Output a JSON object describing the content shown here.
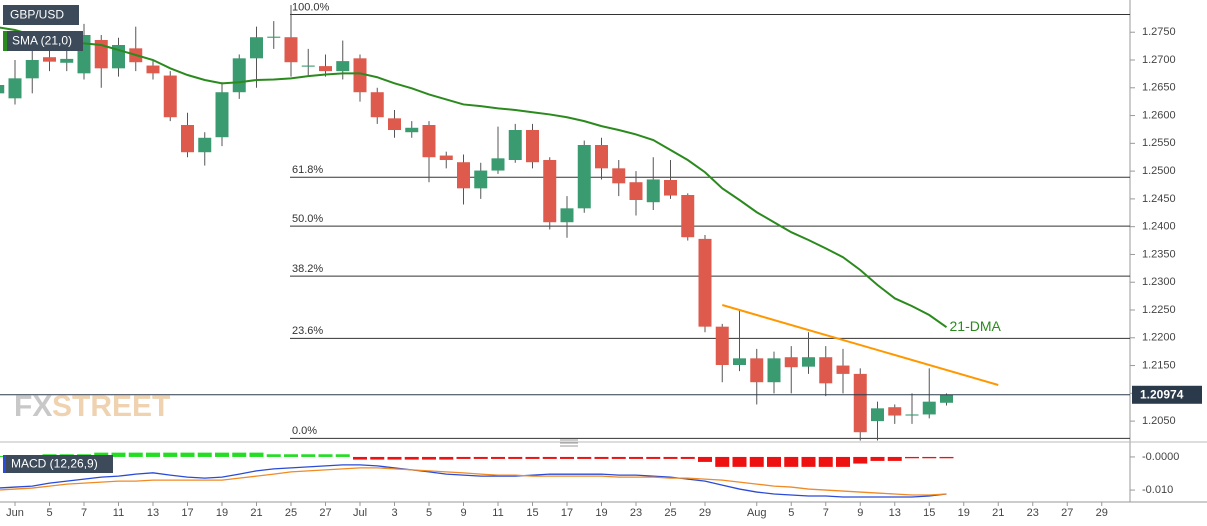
{
  "chart_data": [
    {
      "type": "candlestick",
      "title": "GBP/USD",
      "indicator_label": "SMA (21,0)",
      "categories": [
        null,
        "Jun",
        null,
        "5",
        null,
        "7",
        null,
        "11",
        null,
        "13",
        null,
        "17",
        null,
        "19",
        null,
        "21",
        null,
        "25",
        null,
        "27",
        null,
        "Jul",
        null,
        "3",
        null,
        "5",
        null,
        "9",
        null,
        "11",
        null,
        "15",
        null,
        "17",
        null,
        "19",
        null,
        "23",
        null,
        "25",
        null,
        "29",
        null,
        null,
        "Aug",
        null,
        "5",
        null,
        "7",
        null,
        "9",
        null,
        "13",
        null,
        "15",
        null,
        "19",
        null,
        "21",
        null,
        "23",
        null,
        "27",
        null,
        "29",
        null
      ],
      "open": [
        1.264,
        1.2631,
        1.2667,
        1.2705,
        1.2695,
        1.2676,
        1.2736,
        1.2685,
        1.2721,
        1.269,
        1.2672,
        1.2583,
        1.2534,
        1.2561,
        1.2642,
        1.2703,
        1.274,
        1.2741,
        1.2688,
        1.2689,
        1.268,
        1.2703,
        1.2642,
        1.2595,
        1.257,
        1.2583,
        1.2528,
        1.2516,
        1.2469,
        1.2501,
        1.252,
        1.2574,
        1.252,
        1.2408,
        1.2433,
        1.2547,
        1.2505,
        1.248,
        1.2444,
        1.2484,
        1.2457,
        1.2378,
        1.222,
        1.2151,
        1.2163,
        1.212,
        1.2165,
        1.2148,
        1.2165,
        1.215,
        1.2135,
        1.205,
        1.2075,
        1.206,
        1.2062,
        1.2083,
        null,
        null,
        null,
        null,
        null,
        null,
        null,
        null,
        null,
        null
      ],
      "high": [
        1.268,
        1.27,
        1.272,
        1.2725,
        1.272,
        1.2765,
        1.2745,
        1.274,
        1.276,
        1.27,
        1.268,
        1.2605,
        1.257,
        1.266,
        1.271,
        1.276,
        1.277,
        1.2799,
        1.272,
        1.271,
        1.2735,
        1.271,
        1.265,
        1.261,
        1.259,
        1.259,
        1.2535,
        1.253,
        1.2515,
        1.258,
        1.2585,
        1.2585,
        1.2525,
        1.2455,
        1.2555,
        1.256,
        1.252,
        1.25,
        1.2525,
        1.252,
        1.246,
        1.2385,
        1.2225,
        1.225,
        1.218,
        1.2175,
        1.2185,
        1.221,
        1.2185,
        1.218,
        1.2145,
        1.2085,
        1.208,
        1.21,
        1.2145,
        1.21,
        null,
        null,
        null,
        null,
        null,
        null,
        null,
        null,
        null,
        null
      ],
      "low": [
        1.261,
        1.262,
        1.264,
        1.268,
        1.268,
        1.2665,
        1.265,
        1.267,
        1.268,
        1.2665,
        1.259,
        1.2525,
        1.251,
        1.2545,
        1.263,
        1.265,
        1.272,
        1.267,
        1.267,
        1.267,
        1.2665,
        1.2625,
        1.2585,
        1.256,
        1.256,
        1.248,
        1.2505,
        1.244,
        1.245,
        1.2495,
        1.2515,
        1.2505,
        1.2395,
        1.238,
        1.2425,
        1.2485,
        1.2455,
        1.242,
        1.243,
        1.245,
        1.2375,
        1.221,
        1.212,
        1.214,
        1.208,
        1.21,
        1.21,
        1.2135,
        1.2095,
        1.21,
        1.2015,
        1.2015,
        1.2045,
        1.2045,
        1.2055,
        1.2078,
        null,
        null,
        null,
        null,
        null,
        null,
        null,
        null,
        null,
        null
      ],
      "close": [
        1.2655,
        1.2667,
        1.27,
        1.2697,
        1.2702,
        1.2745,
        1.2685,
        1.2727,
        1.2696,
        1.2676,
        1.2597,
        1.2534,
        1.256,
        1.2642,
        1.2703,
        1.2741,
        1.2742,
        1.2696,
        1.269,
        1.268,
        1.2698,
        1.2642,
        1.2597,
        1.2574,
        1.2578,
        1.2525,
        1.252,
        1.2469,
        1.2501,
        1.2523,
        1.2574,
        1.2516,
        1.2408,
        1.2433,
        1.2547,
        1.2505,
        1.2478,
        1.2448,
        1.2485,
        1.2456,
        1.2381,
        1.222,
        1.2151,
        1.2163,
        1.212,
        1.2163,
        1.2147,
        1.2165,
        1.2118,
        1.2135,
        1.203,
        1.2073,
        1.206,
        1.2062,
        1.2085,
        1.2097,
        null,
        null,
        null,
        null,
        null,
        null,
        null,
        null,
        null,
        null
      ],
      "up_color": "#3a9b70",
      "down_color": "#dd5a4c",
      "sma": {
        "name": "21-DMA",
        "color": "#2b8a1e",
        "values": [
          1.2759,
          1.2754,
          1.2745,
          1.2736,
          1.2732,
          1.273,
          1.2727,
          1.2718,
          1.2709,
          1.27,
          1.2685,
          1.2673,
          1.2664,
          1.2658,
          1.266,
          1.2664,
          1.2665,
          1.2667,
          1.2671,
          1.2674,
          1.2676,
          1.2676,
          1.2669,
          1.2658,
          1.2649,
          1.2638,
          1.2629,
          1.262,
          1.2617,
          1.2613,
          1.261,
          1.2606,
          1.2602,
          1.2597,
          1.259,
          1.2581,
          1.2574,
          1.2566,
          1.2556,
          1.2538,
          1.252,
          1.2498,
          1.2469,
          1.2448,
          1.2426,
          1.2408,
          1.239,
          1.2376,
          1.2361,
          1.2345,
          1.2322,
          1.2295,
          1.2271,
          1.2257,
          1.2241,
          1.2219,
          null,
          null,
          null,
          null,
          null,
          null,
          null,
          null,
          null,
          null
        ]
      },
      "trendline": {
        "color": "#ff9800",
        "x": [
          42,
          58
        ],
        "values": [
          1.2259,
          1.2115
        ]
      },
      "fib_levels": [
        {
          "value": 1.2782,
          "label": "100.0%"
        },
        {
          "value": 1.2489,
          "label": "61.8%"
        },
        {
          "value": 1.2401,
          "label": "50.0%"
        },
        {
          "value": 1.2311,
          "label": "38.2%"
        },
        {
          "value": 1.2199,
          "label": "23.6%"
        },
        {
          "value": 1.2019,
          "label": "0.0%"
        }
      ],
      "last_price": 1.20974,
      "watermark": [
        "FX",
        "STREET"
      ],
      "ylim": [
        1.2016,
        1.2808
      ],
      "yticks": [
        {
          "value": 1.205,
          "label": "1.2050"
        },
        {
          "value": 1.21,
          "label": "1.2100"
        },
        {
          "value": 1.215,
          "label": "1.2150"
        },
        {
          "value": 1.22,
          "label": "1.2200"
        },
        {
          "value": 1.225,
          "label": "1.2250"
        },
        {
          "value": 1.23,
          "label": "1.2300"
        },
        {
          "value": 1.235,
          "label": "1.2350"
        },
        {
          "value": 1.24,
          "label": "1.2400"
        },
        {
          "value": 1.245,
          "label": "1.2450"
        },
        {
          "value": 1.25,
          "label": "1.2500"
        },
        {
          "value": 1.255,
          "label": "1.2550"
        },
        {
          "value": 1.26,
          "label": "1.2600"
        },
        {
          "value": 1.265,
          "label": "1.2650"
        },
        {
          "value": 1.27,
          "label": "1.2700"
        },
        {
          "value": 1.275,
          "label": "1.2750"
        }
      ]
    },
    {
      "type": "macd",
      "title": "MACD (12,26,9)",
      "histogram": {
        "up_color": "#22dd22",
        "down_color": "#ee1111",
        "values": [
          0.0003,
          0.0003,
          0.0003,
          0.0008,
          0.0008,
          0.0008,
          0.0013,
          0.0013,
          0.0013,
          0.0013,
          0.0013,
          0.0013,
          0.0013,
          0.0013,
          0.0013,
          0.0013,
          0.0008,
          0.0008,
          0.0008,
          0.0008,
          0.0008,
          -0.0008,
          -0.0008,
          -0.0008,
          -0.0008,
          -0.0008,
          -0.0008,
          -0.0006,
          -0.0006,
          -0.0006,
          -0.0006,
          -0.0006,
          -0.0006,
          -0.0006,
          -0.0006,
          -0.0006,
          -0.0006,
          -0.0006,
          -0.0006,
          -0.0006,
          -0.0006,
          -0.0015,
          -0.003,
          -0.003,
          -0.003,
          -0.003,
          -0.003,
          -0.003,
          -0.003,
          -0.003,
          -0.002,
          -0.0012,
          -0.0012,
          -0.0004,
          -0.0004,
          -0.0004,
          null,
          null,
          null,
          null,
          null,
          null,
          null,
          null,
          null,
          null
        ]
      },
      "series": [
        {
          "color": "#2a4bd7",
          "values": [
            -0.0094,
            -0.0091,
            -0.0088,
            -0.0079,
            -0.0073,
            -0.0067,
            -0.0061,
            -0.0058,
            -0.0052,
            -0.0048,
            -0.0055,
            -0.0061,
            -0.0064,
            -0.0061,
            -0.0052,
            -0.0042,
            -0.0036,
            -0.0033,
            -0.003,
            -0.0027,
            -0.0024,
            -0.0024,
            -0.0027,
            -0.0033,
            -0.0039,
            -0.0045,
            -0.0052,
            -0.0055,
            -0.0058,
            -0.0058,
            -0.0058,
            -0.0055,
            -0.0052,
            -0.0052,
            -0.0052,
            -0.0052,
            -0.0055,
            -0.0055,
            -0.0058,
            -0.0061,
            -0.0067,
            -0.0073,
            -0.0085,
            -0.0097,
            -0.0106,
            -0.0112,
            -0.0115,
            -0.0118,
            -0.0118,
            -0.0121,
            -0.0121,
            -0.0121,
            -0.0121,
            -0.0121,
            -0.0118,
            -0.0112,
            null,
            null,
            null,
            null,
            null,
            null,
            null,
            null,
            null,
            null
          ]
        },
        {
          "color": "#f08a24",
          "values": [
            -0.01,
            -0.0097,
            -0.0094,
            -0.0088,
            -0.0082,
            -0.0079,
            -0.0076,
            -0.0073,
            -0.0073,
            -0.007,
            -0.007,
            -0.007,
            -0.007,
            -0.007,
            -0.0064,
            -0.0058,
            -0.0052,
            -0.0045,
            -0.0042,
            -0.0039,
            -0.0036,
            -0.0033,
            -0.0033,
            -0.0036,
            -0.0039,
            -0.0042,
            -0.0045,
            -0.0048,
            -0.0052,
            -0.0055,
            -0.0055,
            -0.0058,
            -0.0058,
            -0.0058,
            -0.0058,
            -0.0058,
            -0.0061,
            -0.0061,
            -0.0061,
            -0.0064,
            -0.0064,
            -0.0067,
            -0.007,
            -0.0076,
            -0.0082,
            -0.0088,
            -0.0091,
            -0.0097,
            -0.01,
            -0.0103,
            -0.0106,
            -0.0109,
            -0.0112,
            -0.0115,
            -0.0115,
            -0.0112,
            null,
            null,
            null,
            null,
            null,
            null,
            null,
            null,
            null,
            null
          ]
        }
      ],
      "ylim": [
        -0.013,
        0.003
      ],
      "yticks": [
        {
          "value": 0,
          "label": "-0.0000"
        },
        {
          "value": -0.01,
          "label": "-0.010"
        }
      ]
    }
  ]
}
